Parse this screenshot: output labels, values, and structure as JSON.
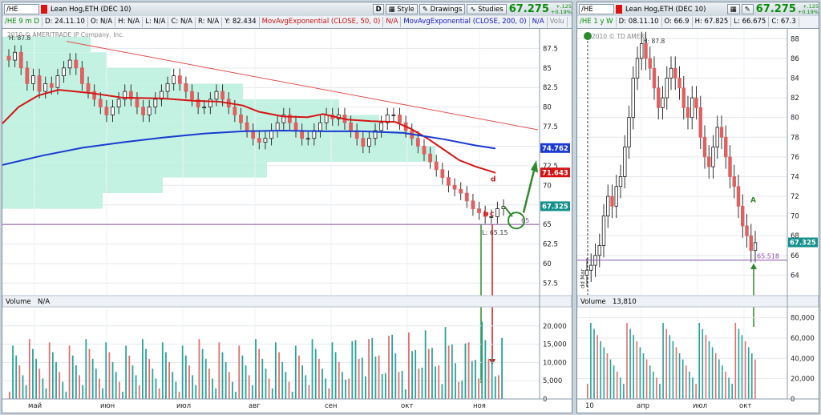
{
  "left": {
    "toolbar": {
      "symbol": "/HE",
      "title": "Lean Hog,ETH (DEC 10)",
      "letter": "D",
      "style_label": "Style",
      "drawings_label": "Drawings",
      "studies_label": "Studies",
      "price": "67.275",
      "change": "+.125",
      "change_pct": "+0.19%"
    },
    "info": {
      "period": "/HE 9 m D",
      "date": "D: 24.11.10",
      "open": "O: N/A",
      "high": "H: N/A",
      "low": "L: N/A",
      "close": "C: N/A",
      "range": "R: N/A",
      "y": "Y: 82.434",
      "study1": "MovAvgExponential (CLOSE, 50, 0)",
      "study1_val": "N/A",
      "study2": "MovAvgExponential (CLOSE, 200, 0)",
      "study2_val": "N/A",
      "vol_toggle": "Volu"
    },
    "copyright": "2010 © AMERITRADE IP Company, Inc.",
    "high_label": "H: 87.8",
    "low_label": "L: 65.15",
    "wave_labels": {
      "b": "b",
      "c": "c",
      "d": "d"
    },
    "level_label": "65",
    "volume_label": "Volume",
    "volume_value": "N/A"
  },
  "right": {
    "toolbar": {
      "symbol": "/HE",
      "title": "Lean Hog,ETH (DEC 10)",
      "price": "67.275",
      "change": "+.125",
      "change_pct": "+0.19%"
    },
    "info": {
      "period": "/HE 1 y W",
      "date": "D: 08.11.10",
      "open": "O: 66.9",
      "high": "H: 67.825",
      "low": "L: 66.675",
      "close": "C: 67.3"
    },
    "copyright": "2010 © TD AMERI",
    "high_label": "H: 87.8",
    "low_label": "65.518",
    "wave_label": "A",
    "vertical_label": "dd Mar",
    "volume_label": "Volume",
    "volume_value": "13,810"
  },
  "chart_data": [
    {
      "type": "line",
      "name_text": "Lean Hog,ETH (DEC 10) daily 9 months",
      "price_axis": {
        "ylim": [
          56,
          90
        ],
        "ticks": [
          57.5,
          60,
          62.5,
          65,
          67.5,
          70,
          72.5,
          75,
          77.5,
          80,
          82.5,
          85,
          87.5
        ]
      },
      "x_ticks": [
        "май",
        "июн",
        "июл",
        "авг",
        "сен",
        "окт",
        "ноя"
      ],
      "price_tags": [
        {
          "label": "74.762",
          "value": 74.762,
          "color": "#1a3ad0"
        },
        {
          "label": "71.643",
          "value": 71.643,
          "color": "#d41414"
        },
        {
          "label": "67.325",
          "value": 67.325,
          "color": "#14908c"
        }
      ],
      "series": [
        {
          "name": "MovAvgExponential (CLOSE, 50, 0)",
          "color": "#d41414",
          "points": [
            [
              0,
              77.9
            ],
            [
              20,
              80.0
            ],
            [
              45,
              81.5
            ],
            [
              70,
              82.2
            ],
            [
              110,
              81.8
            ],
            [
              150,
              81.2
            ],
            [
              200,
              81.1
            ],
            [
              240,
              80.8
            ],
            [
              270,
              80.7
            ],
            [
              300,
              80.2
            ],
            [
              320,
              79.4
            ],
            [
              350,
              78.8
            ],
            [
              380,
              78.7
            ],
            [
              400,
              79.1
            ],
            [
              430,
              78.4
            ],
            [
              460,
              78.2
            ],
            [
              490,
              78.1
            ],
            [
              510,
              77.2
            ],
            [
              530,
              76.0
            ],
            [
              550,
              74.6
            ],
            [
              570,
              73.2
            ],
            [
              590,
              72.4
            ],
            [
              615,
              71.6
            ]
          ]
        },
        {
          "name": "MovAvgExponential (CLOSE, 200, 0)",
          "color": "#1a3ad0",
          "points": [
            [
              0,
              72.6
            ],
            [
              50,
              73.8
            ],
            [
              100,
              74.8
            ],
            [
              150,
              75.5
            ],
            [
              200,
              76.1
            ],
            [
              250,
              76.6
            ],
            [
              300,
              76.9
            ],
            [
              350,
              77.0
            ],
            [
              400,
              76.9
            ],
            [
              450,
              76.9
            ],
            [
              500,
              76.7
            ],
            [
              550,
              75.9
            ],
            [
              590,
              75.1
            ],
            [
              615,
              74.7
            ]
          ]
        }
      ],
      "trendline": {
        "from": [
          80,
          88.4
        ],
        "to": [
          668,
          77.1
        ],
        "color": "#e05050"
      },
      "support_level": 65,
      "volume": {
        "ylim": [
          0,
          25000
        ],
        "ticks": [
          0,
          5000,
          10000,
          15000,
          20000
        ]
      }
    },
    {
      "type": "line",
      "name_text": "Lean Hog,ETH (DEC 10) weekly 1 year",
      "price_axis": {
        "ylim": [
          62,
          89
        ],
        "ticks": [
          64,
          66,
          68,
          70,
          72,
          74,
          76,
          78,
          80,
          82,
          84,
          86,
          88
        ]
      },
      "x_ticks": [
        "10",
        "апр",
        "июл",
        "окт"
      ],
      "price_tags": [
        {
          "label": "67.325",
          "value": 67.325,
          "color": "#14908c"
        }
      ],
      "support_level": 65.518,
      "volume": {
        "ylim": [
          0,
          90000
        ],
        "ticks": [
          0,
          20000,
          40000,
          60000,
          80000
        ]
      }
    }
  ]
}
